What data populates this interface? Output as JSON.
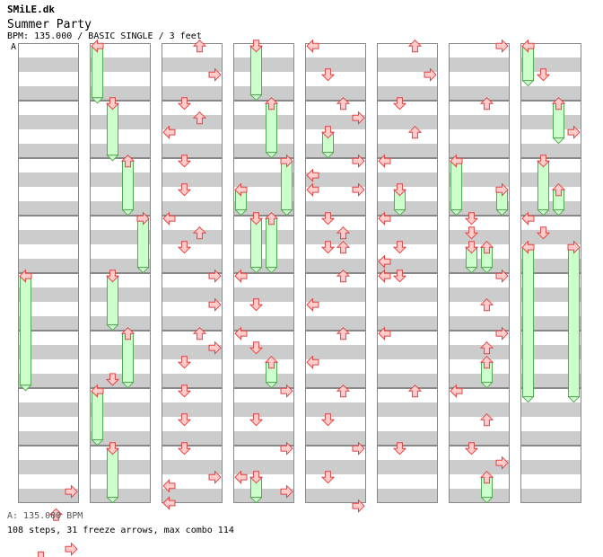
{
  "header": {
    "site": "SMiLE.dk",
    "song_title": "Summer Party",
    "meta": "BPM: 135.000 / BASIC SINGLE / 3 feet",
    "bpm_marker": "A"
  },
  "footer": {
    "bpm_legend": "A: 135.000 BPM",
    "summary": "108 steps, 31 freeze arrows, max combo 114"
  },
  "colors": {
    "arrow_fill": "#ffcccc",
    "arrow_stroke": "#dd4444",
    "freeze_fill": "#ccffcc",
    "freeze_stroke": "#55aa55",
    "stripe": "#cccccc",
    "measure_border": "#888888"
  },
  "chart_data": {
    "type": "step-chart",
    "lanes": [
      "left",
      "down",
      "up",
      "right"
    ],
    "columns": 8,
    "measures_per_column": 8,
    "beats_per_measure": 4,
    "notes": [
      {
        "c": 0,
        "l": "right",
        "b": 31.2
      },
      {
        "c": 0,
        "l": "up",
        "b": 32.8
      },
      {
        "c": 0,
        "l": "right",
        "b": 35.2
      },
      {
        "c": 0,
        "l": "down",
        "b": 35.8
      },
      {
        "c": 0,
        "l": "right",
        "b": 36.4
      },
      {
        "c": 1,
        "l": "down",
        "b": 23.4
      },
      {
        "c": 2,
        "l": "up",
        "b": 0.2
      },
      {
        "c": 2,
        "l": "right",
        "b": 2.2
      },
      {
        "c": 2,
        "l": "down",
        "b": 4.2
      },
      {
        "c": 2,
        "l": "up",
        "b": 5.2
      },
      {
        "c": 2,
        "l": "left",
        "b": 6.2
      },
      {
        "c": 2,
        "l": "down",
        "b": 8.2
      },
      {
        "c": 2,
        "l": "down",
        "b": 10.2
      },
      {
        "c": 2,
        "l": "left",
        "b": 12.2
      },
      {
        "c": 2,
        "l": "up",
        "b": 13.2
      },
      {
        "c": 2,
        "l": "down",
        "b": 14.2
      },
      {
        "c": 2,
        "l": "right",
        "b": 16.2
      },
      {
        "c": 2,
        "l": "right",
        "b": 18.2
      },
      {
        "c": 2,
        "l": "up",
        "b": 20.2
      },
      {
        "c": 2,
        "l": "right",
        "b": 21.2
      },
      {
        "c": 2,
        "l": "down",
        "b": 22.2
      },
      {
        "c": 2,
        "l": "down",
        "b": 24.2
      },
      {
        "c": 2,
        "l": "down",
        "b": 26.2
      },
      {
        "c": 2,
        "l": "down",
        "b": 28.2
      },
      {
        "c": 2,
        "l": "right",
        "b": 30.2
      },
      {
        "c": 2,
        "l": "left",
        "b": 30.8
      },
      {
        "c": 2,
        "l": "left",
        "b": 32.0
      },
      {
        "c": 3,
        "l": "left",
        "b": 16.2
      },
      {
        "c": 3,
        "l": "down",
        "b": 18.2
      },
      {
        "c": 3,
        "l": "left",
        "b": 20.2
      },
      {
        "c": 3,
        "l": "down",
        "b": 21.2
      },
      {
        "c": 3,
        "l": "right",
        "b": 24.2
      },
      {
        "c": 3,
        "l": "down",
        "b": 26.2
      },
      {
        "c": 3,
        "l": "right",
        "b": 28.2
      },
      {
        "c": 3,
        "l": "left",
        "b": 30.2
      },
      {
        "c": 3,
        "l": "right",
        "b": 31.2
      },
      {
        "c": 4,
        "l": "left",
        "b": 0.2
      },
      {
        "c": 4,
        "l": "down",
        "b": 2.2
      },
      {
        "c": 4,
        "l": "up",
        "b": 4.2
      },
      {
        "c": 4,
        "l": "right",
        "b": 5.2
      },
      {
        "c": 4,
        "l": "right",
        "b": 8.2
      },
      {
        "c": 4,
        "l": "left",
        "b": 9.2
      },
      {
        "c": 4,
        "l": "left",
        "b": 10.2
      },
      {
        "c": 4,
        "l": "right",
        "b": 10.2
      },
      {
        "c": 4,
        "l": "down",
        "b": 12.2
      },
      {
        "c": 4,
        "l": "up",
        "b": 13.2
      },
      {
        "c": 4,
        "l": "down",
        "b": 14.2
      },
      {
        "c": 4,
        "l": "up",
        "b": 14.2
      },
      {
        "c": 4,
        "l": "up",
        "b": 16.2
      },
      {
        "c": 4,
        "l": "left",
        "b": 18.2
      },
      {
        "c": 4,
        "l": "up",
        "b": 20.2
      },
      {
        "c": 4,
        "l": "left",
        "b": 22.2
      },
      {
        "c": 4,
        "l": "up",
        "b": 24.2
      },
      {
        "c": 4,
        "l": "down",
        "b": 26.2
      },
      {
        "c": 4,
        "l": "right",
        "b": 28.2
      },
      {
        "c": 4,
        "l": "down",
        "b": 30.2
      },
      {
        "c": 4,
        "l": "right",
        "b": 32.2
      },
      {
        "c": 5,
        "l": "up",
        "b": 0.2
      },
      {
        "c": 5,
        "l": "right",
        "b": 2.2
      },
      {
        "c": 5,
        "l": "down",
        "b": 4.2
      },
      {
        "c": 5,
        "l": "up",
        "b": 6.2
      },
      {
        "c": 5,
        "l": "left",
        "b": 8.2
      },
      {
        "c": 5,
        "l": "left",
        "b": 12.2
      },
      {
        "c": 5,
        "l": "down",
        "b": 14.2
      },
      {
        "c": 5,
        "l": "left",
        "b": 15.2
      },
      {
        "c": 5,
        "l": "left",
        "b": 16.2
      },
      {
        "c": 5,
        "l": "down",
        "b": 16.2
      },
      {
        "c": 5,
        "l": "left",
        "b": 20.2
      },
      {
        "c": 5,
        "l": "up",
        "b": 24.2
      },
      {
        "c": 5,
        "l": "down",
        "b": 28.2
      },
      {
        "c": 6,
        "l": "right",
        "b": 0.2
      },
      {
        "c": 6,
        "l": "up",
        "b": 4.2
      },
      {
        "c": 6,
        "l": "down",
        "b": 12.2
      },
      {
        "c": 6,
        "l": "down",
        "b": 13.2
      },
      {
        "c": 6,
        "l": "right",
        "b": 16.2
      },
      {
        "c": 6,
        "l": "up",
        "b": 18.2
      },
      {
        "c": 6,
        "l": "right",
        "b": 20.2
      },
      {
        "c": 6,
        "l": "up",
        "b": 21.2
      },
      {
        "c": 6,
        "l": "left",
        "b": 24.2
      },
      {
        "c": 6,
        "l": "up",
        "b": 26.2
      },
      {
        "c": 6,
        "l": "down",
        "b": 28.2
      },
      {
        "c": 6,
        "l": "right",
        "b": 29.2
      },
      {
        "c": 7,
        "l": "down",
        "b": 2.2
      },
      {
        "c": 7,
        "l": "right",
        "b": 6.2
      },
      {
        "c": 7,
        "l": "left",
        "b": 12.2
      },
      {
        "c": 7,
        "l": "down",
        "b": 13.2
      }
    ],
    "freezes": [
      {
        "c": 0,
        "l": "left",
        "b": 16.2,
        "e": 23.8
      },
      {
        "c": 1,
        "l": "left",
        "b": 0.2,
        "e": 3.8
      },
      {
        "c": 1,
        "l": "down",
        "b": 4.2,
        "e": 7.8
      },
      {
        "c": 1,
        "l": "up",
        "b": 8.2,
        "e": 11.6
      },
      {
        "c": 1,
        "l": "right",
        "b": 12.2,
        "e": 15.6
      },
      {
        "c": 1,
        "l": "down",
        "b": 16.2,
        "e": 19.6
      },
      {
        "c": 1,
        "l": "up",
        "b": 20.2,
        "e": 23.6
      },
      {
        "c": 1,
        "l": "left",
        "b": 24.2,
        "e": 27.6
      },
      {
        "c": 1,
        "l": "down",
        "b": 28.2,
        "e": 31.6
      },
      {
        "c": 2,
        "l": "dummy",
        "b": 0,
        "e": 0
      },
      {
        "c": 3,
        "l": "down",
        "b": 0.2,
        "e": 3.6
      },
      {
        "c": 3,
        "l": "up",
        "b": 4.2,
        "e": 7.6
      },
      {
        "c": 3,
        "l": "right",
        "b": 8.2,
        "e": 11.6
      },
      {
        "c": 3,
        "l": "left",
        "b": 10.2,
        "e": 11.6
      },
      {
        "c": 3,
        "l": "down",
        "b": 12.2,
        "e": 15.6
      },
      {
        "c": 3,
        "l": "up",
        "b": 12.2,
        "e": 15.6
      },
      {
        "c": 3,
        "l": "up",
        "b": 22.2,
        "e": 23.6
      },
      {
        "c": 3,
        "l": "down",
        "b": 30.2,
        "e": 31.6
      },
      {
        "c": 4,
        "l": "down",
        "b": 6.2,
        "e": 7.6
      },
      {
        "c": 5,
        "l": "down",
        "b": 10.2,
        "e": 11.6
      },
      {
        "c": 6,
        "l": "left",
        "b": 8.2,
        "e": 11.6
      },
      {
        "c": 6,
        "l": "right",
        "b": 10.2,
        "e": 11.6
      },
      {
        "c": 6,
        "l": "down",
        "b": 14.2,
        "e": 15.6
      },
      {
        "c": 6,
        "l": "up",
        "b": 14.2,
        "e": 15.6
      },
      {
        "c": 6,
        "l": "up",
        "b": 22.2,
        "e": 23.6
      },
      {
        "c": 6,
        "l": "up",
        "b": 30.2,
        "e": 31.6
      },
      {
        "c": 7,
        "l": "left",
        "b": 0.2,
        "e": 2.6
      },
      {
        "c": 7,
        "l": "up",
        "b": 4.2,
        "e": 6.6
      },
      {
        "c": 7,
        "l": "down",
        "b": 8.2,
        "e": 11.6
      },
      {
        "c": 7,
        "l": "up",
        "b": 10.2,
        "e": 11.6
      },
      {
        "c": 7,
        "l": "left",
        "b": 14.2,
        "e": 24.6
      },
      {
        "c": 7,
        "l": "right",
        "b": 14.2,
        "e": 24.6
      }
    ]
  }
}
